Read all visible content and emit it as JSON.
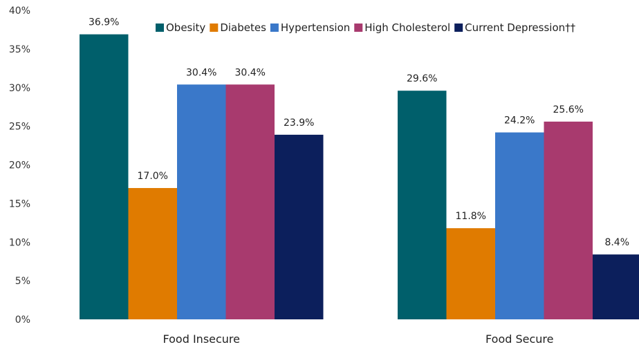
{
  "chart_data": {
    "type": "bar",
    "categories": [
      "Food Insecure",
      "Food Secure"
    ],
    "series": [
      {
        "name": "Obesity",
        "values": [
          36.9,
          29.6
        ],
        "color": "#005F6B"
      },
      {
        "name": "Diabetes",
        "values": [
          17.0,
          11.8
        ],
        "color": "#E07B00"
      },
      {
        "name": "Hypertension",
        "values": [
          30.4,
          24.2
        ],
        "color": "#3A78C9"
      },
      {
        "name": "High Cholesterol",
        "values": [
          30.4,
          25.6
        ],
        "color": "#A83A6E"
      },
      {
        "name": "Current Depression††",
        "values": [
          23.9,
          8.4
        ],
        "color": "#0C1F5C"
      }
    ],
    "data_labels": [
      [
        "36.9%",
        "29.6%"
      ],
      [
        "17.0%",
        "11.8%"
      ],
      [
        "30.4%",
        "24.2%"
      ],
      [
        "30.4%",
        "25.6%"
      ],
      [
        "23.9%",
        "8.4%"
      ]
    ],
    "yticks": [
      "0%",
      "5%",
      "10%",
      "15%",
      "20%",
      "25%",
      "30%",
      "35%",
      "40%"
    ],
    "ylim": [
      0,
      40
    ],
    "grid": false,
    "legend_position": "top-right"
  }
}
